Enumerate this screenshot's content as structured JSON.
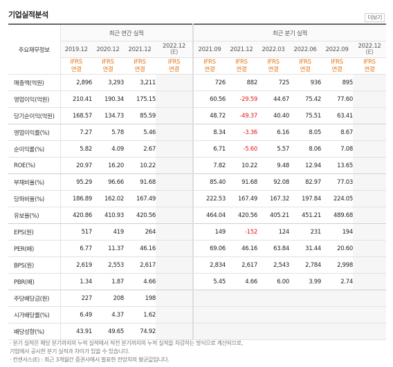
{
  "title": "기업실적분석",
  "more_label": "더보기",
  "header": {
    "row_label": "주요재무정보",
    "annual_group": "최근 연간 실적",
    "quarter_group": "최근 분기 실적",
    "annual_years": [
      {
        "year": "2019.12",
        "est": ""
      },
      {
        "year": "2020.12",
        "est": ""
      },
      {
        "year": "2021.12",
        "est": ""
      },
      {
        "year": "2022.12",
        "est": "(E)"
      }
    ],
    "quarter_years": [
      {
        "year": "2021.09",
        "est": ""
      },
      {
        "year": "2021.12",
        "est": ""
      },
      {
        "year": "2022.03",
        "est": ""
      },
      {
        "year": "2022.06",
        "est": ""
      },
      {
        "year": "2022.09",
        "est": ""
      },
      {
        "year": "2022.12",
        "est": "(E)"
      }
    ],
    "ifrs_line1": "IFRS",
    "ifrs_line2": "연결"
  },
  "rows": [
    {
      "label": "매출액(억원)",
      "annual": [
        "2,896",
        "3,293",
        "3,211",
        ""
      ],
      "quarter": [
        "726",
        "882",
        "725",
        "936",
        "895",
        ""
      ]
    },
    {
      "label": "영업이익(억원)",
      "annual": [
        "210.41",
        "190.34",
        "175.15",
        ""
      ],
      "quarter": [
        "60.56",
        "-29.59",
        "44.67",
        "75.42",
        "77.60",
        ""
      ]
    },
    {
      "label": "당기순이익(억원)",
      "annual": [
        "168.57",
        "134.73",
        "85.59",
        ""
      ],
      "quarter": [
        "48.72",
        "-49.37",
        "40.40",
        "75.51",
        "63.41",
        ""
      ]
    },
    {
      "label": "영업이익률(%)",
      "annual": [
        "7.27",
        "5.78",
        "5.46",
        ""
      ],
      "quarter": [
        "8.34",
        "-3.36",
        "6.16",
        "8.05",
        "8.67",
        ""
      ]
    },
    {
      "label": "순이익률(%)",
      "annual": [
        "5.82",
        "4.09",
        "2.67",
        ""
      ],
      "quarter": [
        "6.71",
        "-5.60",
        "5.57",
        "8.06",
        "7.08",
        ""
      ]
    },
    {
      "label": "ROE(%)",
      "annual": [
        "20.97",
        "16.20",
        "10.22",
        ""
      ],
      "quarter": [
        "7.82",
        "10.22",
        "9.48",
        "12.94",
        "13.65",
        ""
      ]
    },
    {
      "label": "부채비율(%)",
      "annual": [
        "95.29",
        "96.66",
        "91.68",
        ""
      ],
      "quarter": [
        "85.40",
        "91.68",
        "92.08",
        "82.97",
        "77.03",
        ""
      ]
    },
    {
      "label": "당좌비율(%)",
      "annual": [
        "186.89",
        "162.02",
        "167.49",
        ""
      ],
      "quarter": [
        "222.53",
        "167.49",
        "167.32",
        "197.84",
        "224.05",
        ""
      ]
    },
    {
      "label": "유보율(%)",
      "annual": [
        "420.86",
        "410.93",
        "420.56",
        ""
      ],
      "quarter": [
        "464.04",
        "420.56",
        "405.21",
        "451.21",
        "489.68",
        ""
      ]
    },
    {
      "label": "EPS(원)",
      "annual": [
        "517",
        "419",
        "264",
        ""
      ],
      "quarter": [
        "149",
        "-152",
        "124",
        "231",
        "194",
        ""
      ]
    },
    {
      "label": "PER(배)",
      "annual": [
        "6.77",
        "11.37",
        "46.16",
        ""
      ],
      "quarter": [
        "69.06",
        "46.16",
        "63.84",
        "31.44",
        "20.60",
        ""
      ]
    },
    {
      "label": "BPS(원)",
      "annual": [
        "2,619",
        "2,553",
        "2,617",
        ""
      ],
      "quarter": [
        "2,834",
        "2,617",
        "2,543",
        "2,784",
        "2,998",
        ""
      ]
    },
    {
      "label": "PBR(배)",
      "annual": [
        "1.34",
        "1.87",
        "4.66",
        ""
      ],
      "quarter": [
        "5.45",
        "4.66",
        "6.00",
        "3.99",
        "2.74",
        ""
      ]
    },
    {
      "label": "주당배당금(원)",
      "annual": [
        "227",
        "208",
        "198",
        ""
      ],
      "quarter": [
        "",
        "",
        "",
        "",
        "",
        ""
      ]
    },
    {
      "label": "시가배당률(%)",
      "annual": [
        "6.49",
        "4.37",
        "1.62",
        ""
      ],
      "quarter": [
        "",
        "",
        "",
        "",
        "",
        ""
      ]
    },
    {
      "label": "배당성향(%)",
      "annual": [
        "43.91",
        "49.65",
        "74.92",
        ""
      ],
      "quarter": [
        "",
        "",
        "",
        "",
        "",
        ""
      ]
    }
  ],
  "notes": [
    "· 분기 실적은 해당 분기까지의 누적 실적에서 직전 분기까지의 누적 실적을 차감하는 방식으로 계산되므로,",
    "  기업에서 공시한 분기 실적과 차이가 있을 수 있습니다.",
    "· 컨센서스(E) : 최근 3개월간 증권사에서 발표한 전망치의 평균값입니다."
  ],
  "colors": {
    "negative": "#e01a1a",
    "ifrs": "#e0781d"
  }
}
